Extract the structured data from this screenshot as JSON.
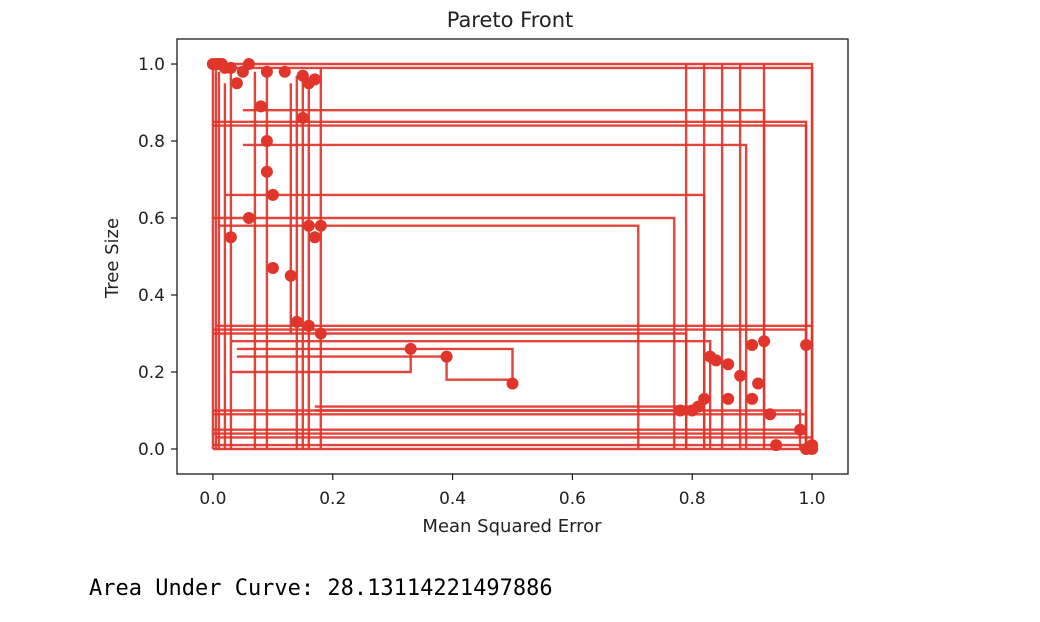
{
  "output": {
    "auc_text": "Area Under Curve: 28.13114221497886"
  },
  "chart_data": {
    "type": "scatter",
    "title": "Pareto Front",
    "xlabel": "Mean Squared Error",
    "ylabel": "Tree Size",
    "xlim": [
      -0.06,
      1.06
    ],
    "ylim": [
      -0.065,
      1.065
    ],
    "xticks": [
      0.0,
      0.2,
      0.4,
      0.6,
      0.8,
      1.0
    ],
    "xtick_labels": [
      "0.0",
      "0.2",
      "0.4",
      "0.6",
      "0.8",
      "1.0"
    ],
    "yticks": [
      0.0,
      0.2,
      0.4,
      0.6,
      0.8,
      1.0
    ],
    "ytick_labels": [
      "0.0",
      "0.2",
      "0.4",
      "0.6",
      "0.8",
      "1.0"
    ],
    "grid": false,
    "color": "#e0352b",
    "marker": "o",
    "series": [
      {
        "points": [
          [
            0.0,
            1.0
          ],
          [
            0.005,
            1.0
          ],
          [
            0.01,
            1.0
          ],
          [
            0.015,
            1.0
          ],
          [
            0.02,
            0.99
          ],
          [
            0.03,
            0.99
          ],
          [
            0.04,
            0.95
          ],
          [
            0.05,
            0.98
          ],
          [
            0.06,
            1.0
          ],
          [
            0.09,
            0.98
          ],
          [
            0.12,
            0.98
          ],
          [
            0.15,
            0.97
          ],
          [
            0.16,
            0.95
          ],
          [
            0.17,
            0.96
          ],
          [
            0.15,
            0.86
          ],
          [
            0.08,
            0.89
          ],
          [
            0.09,
            0.8
          ],
          [
            0.09,
            0.72
          ],
          [
            0.1,
            0.66
          ],
          [
            0.06,
            0.6
          ],
          [
            0.03,
            0.55
          ],
          [
            0.16,
            0.58
          ],
          [
            0.17,
            0.55
          ],
          [
            0.18,
            0.58
          ],
          [
            0.1,
            0.47
          ],
          [
            0.13,
            0.45
          ],
          [
            0.14,
            0.33
          ],
          [
            0.16,
            0.32
          ],
          [
            0.18,
            0.3
          ],
          [
            0.33,
            0.26
          ],
          [
            0.39,
            0.24
          ],
          [
            0.5,
            0.17
          ]
        ]
      },
      {
        "points": [
          [
            0.78,
            0.1
          ],
          [
            0.8,
            0.1
          ],
          [
            0.81,
            0.11
          ],
          [
            0.82,
            0.13
          ],
          [
            0.83,
            0.24
          ],
          [
            0.84,
            0.23
          ],
          [
            0.86,
            0.22
          ],
          [
            0.86,
            0.13
          ],
          [
            0.88,
            0.19
          ],
          [
            0.9,
            0.13
          ],
          [
            0.9,
            0.27
          ],
          [
            0.91,
            0.17
          ],
          [
            0.92,
            0.28
          ],
          [
            0.93,
            0.09
          ],
          [
            0.94,
            0.01
          ],
          [
            0.98,
            0.05
          ],
          [
            0.99,
            0.27
          ],
          [
            0.99,
            0.0
          ],
          [
            1.0,
            0.0
          ],
          [
            1.0,
            0.01
          ]
        ]
      }
    ],
    "step_lines": [
      [
        [
          0.0,
          1.0
        ],
        [
          1.0,
          1.0
        ],
        [
          1.0,
          0.0
        ]
      ],
      [
        [
          0.0,
          0.99
        ],
        [
          1.0,
          0.99
        ],
        [
          1.0,
          0.0
        ]
      ],
      [
        [
          0.0,
          0.85
        ],
        [
          0.99,
          0.85
        ],
        [
          0.99,
          0.0
        ]
      ],
      [
        [
          0.0,
          0.84
        ],
        [
          0.99,
          0.84
        ],
        [
          0.99,
          0.0
        ]
      ],
      [
        [
          0.005,
          0.32
        ],
        [
          1.0,
          0.32
        ],
        [
          1.0,
          0.0
        ]
      ],
      [
        [
          0.0,
          0.31
        ],
        [
          0.99,
          0.31
        ],
        [
          0.99,
          0.0
        ]
      ],
      [
        [
          0.0,
          0.1
        ],
        [
          0.98,
          0.1
        ],
        [
          0.98,
          0.0
        ]
      ],
      [
        [
          0.0,
          0.09
        ],
        [
          0.99,
          0.09
        ],
        [
          0.99,
          0.0
        ]
      ],
      [
        [
          0.0,
          0.0
        ],
        [
          1.0,
          0.0
        ]
      ],
      [
        [
          0.0,
          0.01
        ],
        [
          1.0,
          0.01
        ]
      ],
      [
        [
          0.005,
          0.03
        ],
        [
          1.0,
          0.03
        ]
      ],
      [
        [
          0.0,
          0.05
        ],
        [
          0.98,
          0.05
        ]
      ],
      [
        [
          0.0,
          0.04
        ],
        [
          0.99,
          0.04
        ]
      ],
      [
        [
          0.0,
          0.6
        ],
        [
          0.77,
          0.6
        ],
        [
          0.77,
          0.0
        ]
      ],
      [
        [
          0.01,
          0.58
        ],
        [
          0.71,
          0.58
        ],
        [
          0.71,
          0.0
        ]
      ],
      [
        [
          0.05,
          0.88
        ],
        [
          0.92,
          0.88
        ],
        [
          0.92,
          0.0
        ]
      ],
      [
        [
          0.05,
          0.79
        ],
        [
          0.89,
          0.79
        ],
        [
          0.89,
          0.0
        ]
      ],
      [
        [
          0.02,
          0.66
        ],
        [
          0.82,
          0.66
        ],
        [
          0.82,
          0.0
        ]
      ],
      [
        [
          0.0,
          0.3
        ],
        [
          0.79,
          0.3
        ],
        [
          0.79,
          0.0
        ]
      ],
      [
        [
          0.03,
          0.28
        ],
        [
          0.83,
          0.28
        ],
        [
          0.83,
          0.0
        ]
      ],
      [
        [
          0.04,
          0.26
        ],
        [
          0.5,
          0.26
        ],
        [
          0.5,
          0.17
        ]
      ],
      [
        [
          0.04,
          0.24
        ],
        [
          0.39,
          0.24
        ],
        [
          0.39,
          0.18
        ],
        [
          0.5,
          0.18
        ]
      ],
      [
        [
          0.03,
          0.2
        ],
        [
          0.33,
          0.2
        ],
        [
          0.33,
          0.26
        ]
      ],
      [
        [
          0.17,
          0.1
        ],
        [
          0.78,
          0.1
        ]
      ],
      [
        [
          0.17,
          0.11
        ],
        [
          0.81,
          0.11
        ]
      ],
      [
        [
          0.02,
          0.95
        ],
        [
          0.02,
          0.0
        ]
      ],
      [
        [
          0.03,
          0.99
        ],
        [
          0.03,
          0.0
        ]
      ],
      [
        [
          0.07,
          0.98
        ],
        [
          0.07,
          0.0
        ]
      ],
      [
        [
          0.14,
          0.97
        ],
        [
          0.14,
          0.0
        ]
      ],
      [
        [
          0.15,
          0.98
        ],
        [
          0.15,
          0.0
        ]
      ],
      [
        [
          0.18,
          0.99
        ],
        [
          0.18,
          0.0
        ]
      ],
      [
        [
          0.16,
          0.95
        ],
        [
          0.16,
          0.0
        ]
      ],
      [
        [
          0.13,
          0.95
        ],
        [
          0.13,
          0.3
        ]
      ],
      [
        [
          0.79,
          1.0
        ],
        [
          0.79,
          0.0
        ]
      ],
      [
        [
          0.82,
          1.0
        ],
        [
          0.82,
          0.0
        ]
      ],
      [
        [
          0.85,
          1.0
        ],
        [
          0.85,
          0.0
        ]
      ],
      [
        [
          0.88,
          1.0
        ],
        [
          0.88,
          0.0
        ]
      ],
      [
        [
          0.92,
          1.0
        ],
        [
          0.92,
          0.1
        ]
      ],
      [
        [
          0.09,
          0.98
        ],
        [
          0.09,
          0.0
        ]
      ],
      [
        [
          0.01,
          0.98
        ],
        [
          0.01,
          0.0
        ]
      ],
      [
        [
          0.005,
          0.99
        ],
        [
          0.005,
          0.0
        ]
      ],
      [
        [
          0.0,
          1.0
        ],
        [
          0.0,
          0.0
        ]
      ]
    ]
  }
}
